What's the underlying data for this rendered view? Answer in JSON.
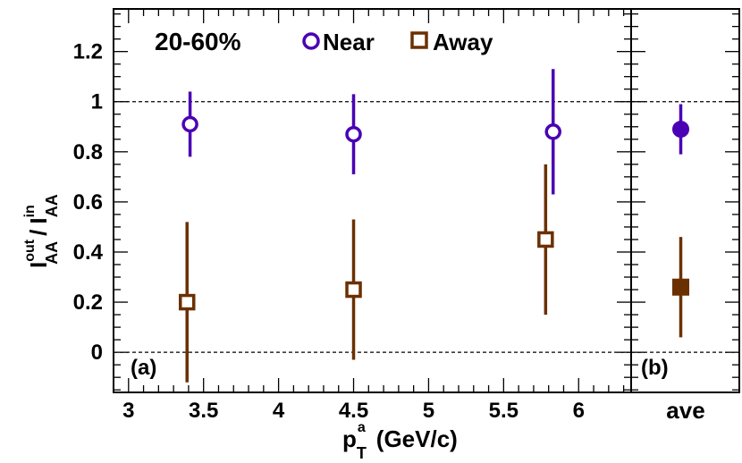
{
  "chart_data": [
    {
      "panel": "(a)",
      "type": "scatter",
      "centrality_label": "20-60%",
      "xlabel": "p_T^a (GeV/c)",
      "xlabel_main": "p",
      "xlabel_sub": "T",
      "xlabel_sup": "a",
      "xlabel_units": "(GeV/c)",
      "ylabel": "I_AA^out / I_AA^in",
      "ylabel_num": "I",
      "ylabel_num_sup": "out",
      "ylabel_num_sub": "AA",
      "ylabel_slash": "/",
      "ylabel_den": "I",
      "ylabel_den_sup": "in",
      "ylabel_den_sub": "AA",
      "xlim": [
        2.9,
        6.35
      ],
      "ylim": [
        -0.16,
        1.37
      ],
      "xticks": [
        3,
        3.5,
        4,
        4.5,
        5,
        5.5,
        6
      ],
      "xtick_labels": [
        "3",
        "3.5",
        "4",
        "4.5",
        "5",
        "5.5",
        "6"
      ],
      "yticks": [
        0,
        0.2,
        0.4,
        0.6,
        0.8,
        1,
        1.2
      ],
      "ytick_labels": [
        "0",
        "0.2",
        "0.4",
        "0.6",
        "0.8",
        "1",
        "1.2"
      ],
      "reference_lines": [
        0,
        1
      ],
      "legend": [
        {
          "label": "Near",
          "marker": "open-circle",
          "color": "#4a00b4"
        },
        {
          "label": "Away",
          "marker": "open-square",
          "color": "#6b3000"
        }
      ],
      "series": [
        {
          "name": "Near",
          "color": "#4a00b4",
          "marker": "open-circle",
          "x": [
            3.41,
            4.5,
            5.83
          ],
          "y": [
            0.91,
            0.87,
            0.88
          ],
          "err_low": [
            0.13,
            0.16,
            0.25
          ],
          "err_high": [
            0.13,
            0.16,
            0.25
          ]
        },
        {
          "name": "Away",
          "color": "#6b3000",
          "marker": "open-square",
          "x": [
            3.39,
            4.5,
            5.78
          ],
          "y": [
            0.2,
            0.25,
            0.45
          ],
          "err_low": [
            0.32,
            0.28,
            0.3
          ],
          "err_high": [
            0.32,
            0.28,
            0.3
          ]
        }
      ]
    },
    {
      "panel": "(b)",
      "type": "scatter",
      "x_category": "ave",
      "ylim": [
        -0.16,
        1.37
      ],
      "series": [
        {
          "name": "Near",
          "color": "#4a00b4",
          "marker": "filled-circle",
          "y": 0.89,
          "err_low": 0.1,
          "err_high": 0.1
        },
        {
          "name": "Away",
          "color": "#6b3000",
          "marker": "filled-square",
          "y": 0.26,
          "err_low": 0.2,
          "err_high": 0.2
        }
      ]
    }
  ]
}
